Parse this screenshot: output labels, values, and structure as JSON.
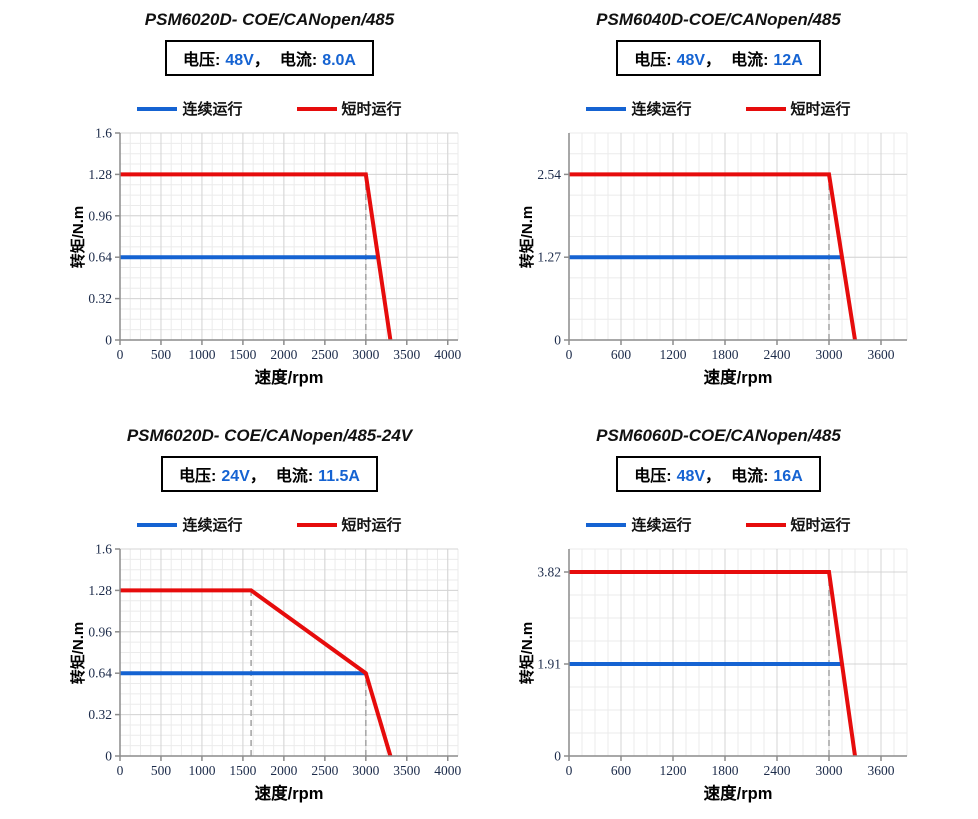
{
  "colors": {
    "blue": "#1563D2",
    "red": "#E60C0C",
    "grid_minor": "#EBEBEB",
    "grid_major": "#D4D4D4",
    "axis": "#8C8C8C",
    "dashed": "#A8A8A8",
    "tick_text": "#1C2B4A",
    "value_text_blue": "#1563D2"
  },
  "legend": {
    "continuous": "连续运行",
    "short_time": "短时运行"
  },
  "panels": [
    {
      "title": "PSM6020D- COE/CANopen/485",
      "voltage_label": "电压:",
      "voltage_value": "48V",
      "separator": "，",
      "current_label": "电流:",
      "current_value": "8.0A"
    },
    {
      "title": "PSM6040D-COE/CANopen/485",
      "voltage_label": "电压:",
      "voltage_value": "48V",
      "separator": "，",
      "current_label": "电流:",
      "current_value": "12A"
    },
    {
      "title": "PSM6020D- COE/CANopen/485-24V",
      "voltage_label": "电压:",
      "voltage_value": "24V",
      "separator": "，",
      "current_label": "电流:",
      "current_value": "11.5A"
    },
    {
      "title": "PSM6060D-COE/CANopen/485",
      "voltage_label": "电压:",
      "voltage_value": "48V",
      "separator": "，",
      "current_label": "电流:",
      "current_value": "16A"
    }
  ],
  "chart_data": [
    {
      "type": "line",
      "title": "PSM6020D- COE/CANopen/485",
      "xlabel": "速度/rpm",
      "ylabel": "转矩/N.m",
      "xlim": [
        0,
        4125
      ],
      "ylim": [
        0,
        1.6
      ],
      "xticks": [
        0,
        500,
        1000,
        1500,
        2000,
        2500,
        3000,
        3500,
        4000
      ],
      "yticks": [
        [
          0,
          "0"
        ],
        [
          0.32,
          "0.32"
        ],
        [
          0.64,
          "0.64"
        ],
        [
          0.96,
          "0.96"
        ],
        [
          1.28,
          "1.28"
        ],
        [
          1.6,
          "1.6"
        ]
      ],
      "x_minor": 125,
      "y_minor": 0.08,
      "grid": true,
      "legend_position": "top",
      "dashed_guides": [
        {
          "x": 3000,
          "y": 1.28
        }
      ],
      "series": [
        {
          "name": "连续运行",
          "color": "blue",
          "points": [
            [
              0,
              0.64
            ],
            [
              3150,
              0.64
            ]
          ]
        },
        {
          "name": "短时运行",
          "color": "red",
          "points": [
            [
              0,
              1.28
            ],
            [
              3000,
              1.28
            ],
            [
              3300,
              0
            ]
          ]
        }
      ]
    },
    {
      "type": "line",
      "title": "PSM6040D-COE/CANopen/485",
      "xlabel": "速度/rpm",
      "ylabel": "转矩/N.m",
      "xlim": [
        0,
        3900
      ],
      "ylim": [
        0,
        3.175
      ],
      "xticks": [
        0,
        600,
        1200,
        1800,
        2400,
        3000,
        3600
      ],
      "yticks": [
        [
          0,
          "0"
        ],
        [
          1.27,
          "1.27"
        ],
        [
          2.54,
          "2.54"
        ]
      ],
      "x_minor": 150,
      "y_minor": 0.3175,
      "grid": true,
      "legend_position": "top",
      "dashed_guides": [
        {
          "x": 3000,
          "y": 2.54
        }
      ],
      "series": [
        {
          "name": "连续运行",
          "color": "blue",
          "points": [
            [
              0,
              1.27
            ],
            [
              3150,
              1.27
            ]
          ]
        },
        {
          "name": "短时运行",
          "color": "red",
          "points": [
            [
              0,
              2.54
            ],
            [
              3000,
              2.54
            ],
            [
              3300,
              0
            ]
          ]
        }
      ]
    },
    {
      "type": "line",
      "title": "PSM6020D- COE/CANopen/485-24V",
      "xlabel": "速度/rpm",
      "ylabel": "转矩/N.m",
      "xlim": [
        0,
        4125
      ],
      "ylim": [
        0,
        1.6
      ],
      "xticks": [
        0,
        500,
        1000,
        1500,
        2000,
        2500,
        3000,
        3500,
        4000
      ],
      "yticks": [
        [
          0,
          "0"
        ],
        [
          0.32,
          "0.32"
        ],
        [
          0.64,
          "0.64"
        ],
        [
          0.96,
          "0.96"
        ],
        [
          1.28,
          "1.28"
        ],
        [
          1.6,
          "1.6"
        ]
      ],
      "x_minor": 125,
      "y_minor": 0.08,
      "grid": true,
      "legend_position": "top",
      "dashed_guides": [
        {
          "x": 1600,
          "y": 1.28
        },
        {
          "x": 3000,
          "y": 0.64
        }
      ],
      "series": [
        {
          "name": "连续运行",
          "color": "blue",
          "points": [
            [
              0,
              0.64
            ],
            [
              3000,
              0.64
            ]
          ]
        },
        {
          "name": "短时运行",
          "color": "red",
          "points": [
            [
              0,
              1.28
            ],
            [
              1600,
              1.28
            ],
            [
              3000,
              0.64
            ],
            [
              3300,
              0
            ]
          ]
        }
      ]
    },
    {
      "type": "line",
      "title": "PSM6060D-COE/CANopen/485",
      "xlabel": "速度/rpm",
      "ylabel": "转矩/N.m",
      "xlim": [
        0,
        3900
      ],
      "ylim": [
        0,
        4.2975
      ],
      "xticks": [
        0,
        600,
        1200,
        1800,
        2400,
        3000,
        3600
      ],
      "yticks": [
        [
          0,
          "0"
        ],
        [
          1.91,
          "1.91"
        ],
        [
          3.82,
          "3.82"
        ]
      ],
      "x_minor": 150,
      "y_minor": 0.4775,
      "grid": true,
      "legend_position": "top",
      "dashed_guides": [
        {
          "x": 3000,
          "y": 3.82
        }
      ],
      "series": [
        {
          "name": "连续运行",
          "color": "blue",
          "points": [
            [
              0,
              1.91
            ],
            [
              3150,
              1.91
            ]
          ]
        },
        {
          "name": "短时运行",
          "color": "red",
          "points": [
            [
              0,
              3.82
            ],
            [
              3000,
              3.82
            ],
            [
              3300,
              0
            ]
          ]
        }
      ]
    }
  ]
}
